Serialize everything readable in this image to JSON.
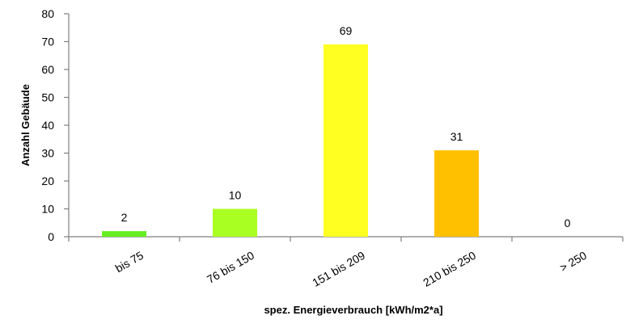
{
  "chart_data": {
    "type": "bar",
    "categories": [
      "bis 75",
      "76 bis 150",
      "151 bis 209",
      "210 bis 250",
      "> 250"
    ],
    "values": [
      2,
      10,
      69,
      31,
      0
    ],
    "data_labels": [
      "2",
      "10",
      "69",
      "31",
      "0"
    ],
    "colors": [
      "#66ee22",
      "#aaff22",
      "#ffff22",
      "#ffc000",
      "#ff6600"
    ],
    "title": "",
    "xlabel": "spez. Energieverbrauch  [kWh/m2*a]",
    "ylabel": "Anzahl  Gebäude",
    "ylim": [
      0,
      80
    ],
    "yticks": [
      0,
      10,
      20,
      30,
      40,
      50,
      60,
      70,
      80
    ],
    "grid": false,
    "legend": "none"
  }
}
